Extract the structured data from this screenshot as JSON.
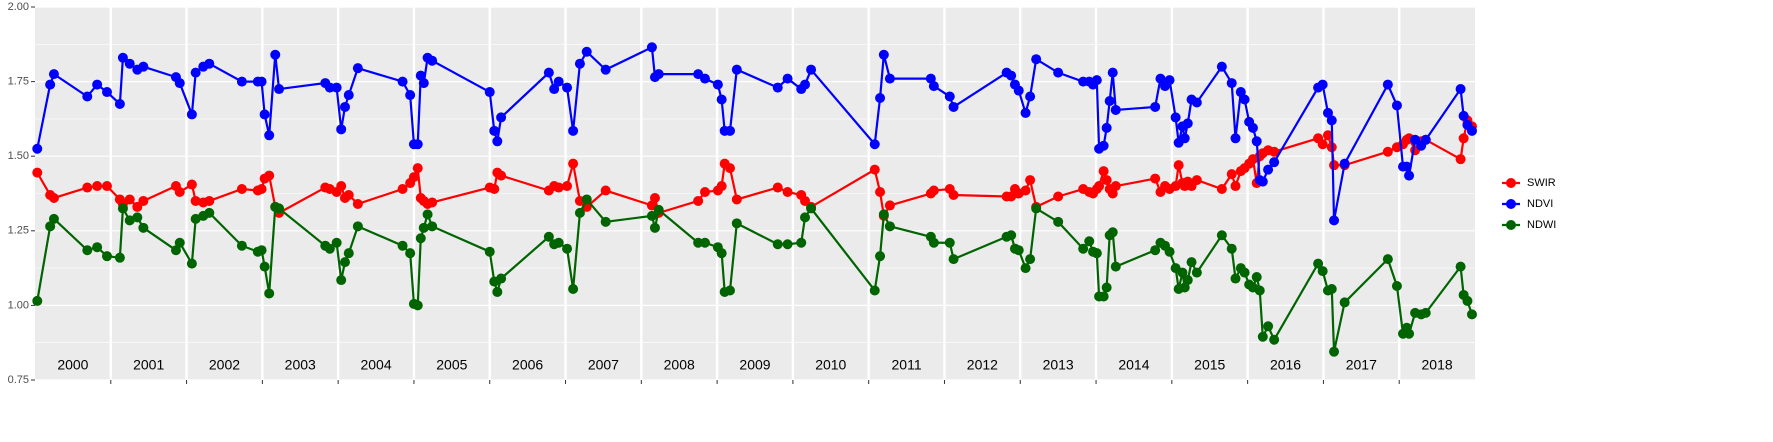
{
  "chart_data": {
    "type": "line",
    "x": [
      2000.03,
      2000.2,
      2000.25,
      2000.69,
      2000.82,
      2000.95,
      2001.12,
      2001.16,
      2001.25,
      2001.35,
      2001.43,
      2001.86,
      2001.91,
      2002.07,
      2002.12,
      2002.22,
      2002.3,
      2002.73,
      2002.94,
      2002.99,
      2003.03,
      2003.09,
      2003.17,
      2003.22,
      2003.83,
      2003.89,
      2003.98,
      2004.04,
      2004.09,
      2004.14,
      2004.26,
      2004.85,
      2004.95,
      2005.0,
      2005.05,
      2005.09,
      2005.13,
      2005.18,
      2005.24,
      2006.0,
      2006.06,
      2006.1,
      2006.15,
      2006.78,
      2006.85,
      2006.91,
      2007.02,
      2007.1,
      2007.19,
      2007.28,
      2007.53,
      2008.14,
      2008.18,
      2008.23,
      2008.75,
      2008.84,
      2009.01,
      2009.06,
      2009.1,
      2009.17,
      2009.26,
      2009.8,
      2009.93,
      2010.11,
      2010.16,
      2010.24,
      2011.08,
      2011.15,
      2011.2,
      2011.28,
      2011.82,
      2011.86,
      2012.07,
      2012.12,
      2012.82,
      2012.88,
      2012.93,
      2012.98,
      2013.07,
      2013.13,
      2013.21,
      2013.5,
      2013.83,
      2013.91,
      2013.96,
      2014.01,
      2014.04,
      2014.1,
      2014.14,
      2014.18,
      2014.22,
      2014.26,
      2014.78,
      2014.85,
      2014.91,
      2014.97,
      2015.05,
      2015.09,
      2015.14,
      2015.17,
      2015.21,
      2015.26,
      2015.33,
      2015.66,
      2015.79,
      2015.84,
      2015.91,
      2015.96,
      2016.02,
      2016.07,
      2016.12,
      2016.16,
      2016.2,
      2016.27,
      2016.35,
      2016.93,
      2016.99,
      2017.06,
      2017.11,
      2017.14,
      2017.28,
      2017.85,
      2017.97,
      2018.05,
      2018.1,
      2018.13,
      2018.21,
      2018.29,
      2018.35,
      2018.81,
      2018.85,
      2018.9,
      2018.96
    ],
    "series": [
      {
        "name": "SWIR",
        "color": "#ff0000",
        "values": [
          1.445,
          1.37,
          1.36,
          1.395,
          1.4,
          1.4,
          1.355,
          1.34,
          1.355,
          1.33,
          1.35,
          1.4,
          1.38,
          1.405,
          1.35,
          1.345,
          1.35,
          1.39,
          1.385,
          1.39,
          1.425,
          1.435,
          1.33,
          1.31,
          1.395,
          1.39,
          1.38,
          1.4,
          1.36,
          1.37,
          1.34,
          1.39,
          1.41,
          1.43,
          1.46,
          1.36,
          1.35,
          1.34,
          1.345,
          1.395,
          1.39,
          1.445,
          1.435,
          1.385,
          1.4,
          1.395,
          1.4,
          1.475,
          1.35,
          1.33,
          1.385,
          1.335,
          1.36,
          1.31,
          1.35,
          1.38,
          1.385,
          1.4,
          1.475,
          1.46,
          1.355,
          1.395,
          1.38,
          1.37,
          1.35,
          1.33,
          1.455,
          1.38,
          1.3,
          1.335,
          1.375,
          1.385,
          1.39,
          1.37,
          1.365,
          1.365,
          1.39,
          1.375,
          1.385,
          1.42,
          1.33,
          1.365,
          1.39,
          1.38,
          1.375,
          1.39,
          1.4,
          1.45,
          1.42,
          1.39,
          1.375,
          1.4,
          1.425,
          1.38,
          1.4,
          1.39,
          1.4,
          1.47,
          1.41,
          1.4,
          1.415,
          1.4,
          1.42,
          1.39,
          1.44,
          1.4,
          1.45,
          1.46,
          1.475,
          1.49,
          1.41,
          1.5,
          1.51,
          1.52,
          1.515,
          1.56,
          1.54,
          1.57,
          1.53,
          1.47,
          1.47,
          1.515,
          1.53,
          1.54,
          1.555,
          1.56,
          1.52,
          1.55,
          1.555,
          1.49,
          1.56,
          1.62,
          1.6
        ]
      },
      {
        "name": "NDVI",
        "color": "#0000ff",
        "values": [
          1.525,
          1.74,
          1.775,
          1.7,
          1.74,
          1.715,
          1.675,
          1.83,
          1.81,
          1.79,
          1.8,
          1.765,
          1.745,
          1.64,
          1.78,
          1.8,
          1.81,
          1.75,
          1.75,
          1.75,
          1.64,
          1.57,
          1.84,
          1.725,
          1.745,
          1.73,
          1.73,
          1.59,
          1.665,
          1.705,
          1.795,
          1.75,
          1.705,
          1.54,
          1.54,
          1.77,
          1.745,
          1.83,
          1.82,
          1.715,
          1.585,
          1.55,
          1.63,
          1.78,
          1.725,
          1.75,
          1.73,
          1.585,
          1.81,
          1.85,
          1.79,
          1.865,
          1.765,
          1.775,
          1.775,
          1.76,
          1.74,
          1.69,
          1.585,
          1.585,
          1.79,
          1.73,
          1.76,
          1.725,
          1.74,
          1.79,
          1.54,
          1.695,
          1.84,
          1.76,
          1.76,
          1.735,
          1.7,
          1.665,
          1.78,
          1.77,
          1.74,
          1.72,
          1.645,
          1.7,
          1.825,
          1.78,
          1.75,
          1.75,
          1.74,
          1.755,
          1.525,
          1.535,
          1.595,
          1.685,
          1.78,
          1.655,
          1.665,
          1.76,
          1.735,
          1.755,
          1.63,
          1.545,
          1.6,
          1.56,
          1.61,
          1.69,
          1.68,
          1.8,
          1.745,
          1.56,
          1.715,
          1.69,
          1.615,
          1.595,
          1.55,
          1.42,
          1.415,
          1.455,
          1.48,
          1.73,
          1.74,
          1.645,
          1.62,
          1.285,
          1.475,
          1.74,
          1.67,
          1.465,
          1.465,
          1.435,
          1.555,
          1.535,
          1.555,
          1.725,
          1.635,
          1.605,
          1.585
        ]
      },
      {
        "name": "NDWI",
        "color": "#006400",
        "values": [
          1.015,
          1.265,
          1.29,
          1.185,
          1.195,
          1.165,
          1.16,
          1.325,
          1.285,
          1.295,
          1.26,
          1.185,
          1.21,
          1.14,
          1.29,
          1.3,
          1.31,
          1.2,
          1.18,
          1.185,
          1.13,
          1.04,
          1.33,
          1.325,
          1.2,
          1.19,
          1.21,
          1.085,
          1.145,
          1.175,
          1.265,
          1.2,
          1.175,
          1.005,
          1.0,
          1.225,
          1.26,
          1.305,
          1.265,
          1.18,
          1.08,
          1.045,
          1.09,
          1.23,
          1.205,
          1.21,
          1.19,
          1.055,
          1.31,
          1.355,
          1.28,
          1.3,
          1.26,
          1.32,
          1.21,
          1.21,
          1.195,
          1.175,
          1.045,
          1.05,
          1.275,
          1.205,
          1.205,
          1.21,
          1.295,
          1.325,
          1.05,
          1.165,
          1.305,
          1.265,
          1.23,
          1.21,
          1.21,
          1.155,
          1.23,
          1.235,
          1.19,
          1.185,
          1.125,
          1.155,
          1.325,
          1.28,
          1.19,
          1.215,
          1.18,
          1.175,
          1.03,
          1.03,
          1.06,
          1.235,
          1.245,
          1.13,
          1.185,
          1.21,
          1.2,
          1.18,
          1.125,
          1.055,
          1.11,
          1.06,
          1.085,
          1.145,
          1.11,
          1.235,
          1.19,
          1.09,
          1.125,
          1.11,
          1.07,
          1.06,
          1.095,
          1.05,
          0.895,
          0.93,
          0.885,
          1.14,
          1.115,
          1.05,
          1.055,
          0.845,
          1.01,
          1.155,
          1.065,
          0.905,
          0.925,
          0.905,
          0.975,
          0.97,
          0.975,
          1.13,
          1.035,
          1.015,
          0.97
        ]
      }
    ],
    "xlim": [
      2000,
      2019
    ],
    "xticks": [
      2001,
      2002,
      2003,
      2004,
      2005,
      2006,
      2007,
      2008,
      2009,
      2010,
      2011,
      2012,
      2013,
      2014,
      2015,
      2016,
      2017,
      2018
    ],
    "year_labels": [
      {
        "value": 2000.5,
        "label": "2000"
      },
      {
        "value": 2001.5,
        "label": "2001"
      },
      {
        "value": 2002.5,
        "label": "2002"
      },
      {
        "value": 2003.5,
        "label": "2003"
      },
      {
        "value": 2004.5,
        "label": "2004"
      },
      {
        "value": 2005.5,
        "label": "2005"
      },
      {
        "value": 2006.5,
        "label": "2006"
      },
      {
        "value": 2007.5,
        "label": "2007"
      },
      {
        "value": 2008.5,
        "label": "2008"
      },
      {
        "value": 2009.5,
        "label": "2009"
      },
      {
        "value": 2010.5,
        "label": "2010"
      },
      {
        "value": 2011.5,
        "label": "2011"
      },
      {
        "value": 2012.5,
        "label": "2012"
      },
      {
        "value": 2013.5,
        "label": "2013"
      },
      {
        "value": 2014.5,
        "label": "2014"
      },
      {
        "value": 2015.5,
        "label": "2015"
      },
      {
        "value": 2016.5,
        "label": "2016"
      },
      {
        "value": 2017.5,
        "label": "2017"
      },
      {
        "value": 2018.5,
        "label": "2018"
      }
    ],
    "ylim": [
      0.75,
      2.0
    ],
    "yticks": [
      {
        "value": 0.75,
        "label": "0.75"
      },
      {
        "value": 1.0,
        "label": "1.00"
      },
      {
        "value": 1.25,
        "label": "1.25"
      },
      {
        "value": 1.5,
        "label": "1.50"
      },
      {
        "value": 1.75,
        "label": "1.75"
      },
      {
        "value": 2.0,
        "label": "2.00"
      }
    ],
    "grid": true,
    "legend": "right"
  }
}
